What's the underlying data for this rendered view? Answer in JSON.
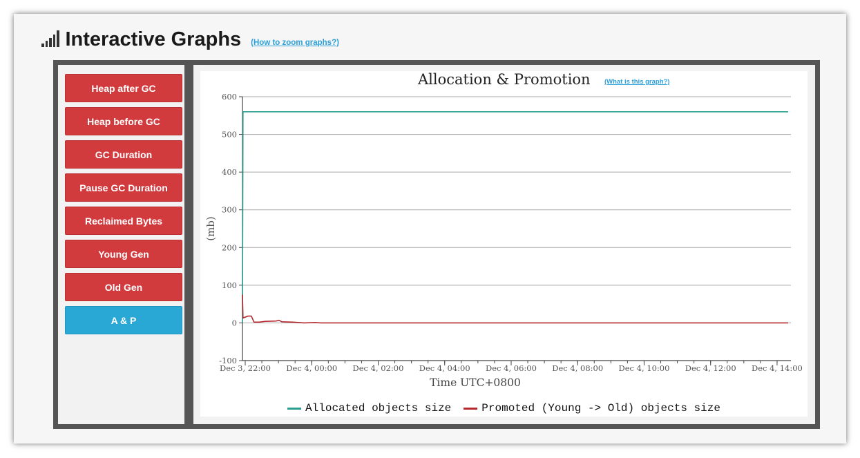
{
  "header": {
    "title": "Interactive Graphs",
    "help_link": "(How to zoom graphs?)"
  },
  "sidebar": {
    "items": [
      {
        "label": "Heap after GC"
      },
      {
        "label": "Heap before GC"
      },
      {
        "label": "GC Duration"
      },
      {
        "label": "Pause GC Duration"
      },
      {
        "label": "Reclaimed Bytes"
      },
      {
        "label": "Young Gen"
      },
      {
        "label": "Old Gen"
      },
      {
        "label": "A & P"
      }
    ],
    "active_index": 7
  },
  "colors": {
    "sidebar_button": "#d23b3e",
    "sidebar_active": "#29a8d6",
    "allocated_series": "#2a9d8f",
    "promoted_series": "#b5282e"
  },
  "chart_data": {
    "type": "line",
    "title": "Allocation & Promotion",
    "help_link": "(What is this graph?)",
    "ylabel": "(mb)",
    "xlabel": "Time UTC+0800",
    "ylim": [
      -100,
      600
    ],
    "y_ticks": [
      -100,
      0,
      100,
      200,
      300,
      400,
      500,
      600
    ],
    "xlim": [
      "Dec 3, 21:55",
      "Dec 4, 14:25"
    ],
    "x_ticks": [
      {
        "label": "Dec 3, 22:00",
        "x": "Dec 3, 22:00"
      },
      {
        "label": "Dec 4, 00:00",
        "x": "Dec 4, 00:00"
      },
      {
        "label": "Dec 4, 02:00",
        "x": "Dec 4, 02:00"
      },
      {
        "label": "Dec 4, 04:00",
        "x": "Dec 4, 04:00"
      },
      {
        "label": "Dec 4, 06:00",
        "x": "Dec 4, 06:00"
      },
      {
        "label": "Dec 4, 08:00",
        "x": "Dec 4, 08:00"
      },
      {
        "label": "Dec 4, 10:00",
        "x": "Dec 4, 10:00"
      },
      {
        "label": "Dec 4, 12:00",
        "x": "Dec 4, 12:00"
      },
      {
        "label": "Dec 4, 14:00",
        "x": "Dec 4, 14:00"
      }
    ],
    "grid": true,
    "legend_position": "bottom",
    "series": [
      {
        "name": "Allocated objects size",
        "color": "#2a9d8f",
        "points": [
          {
            "x": "Dec 3, 21:55",
            "y": 0
          },
          {
            "x": "Dec 3, 21:56",
            "y": 560
          },
          {
            "x": "Dec 4, 14:20",
            "y": 560
          }
        ]
      },
      {
        "name": "Promoted (Young -> Old) objects size",
        "color": "#b5282e",
        "points": [
          {
            "x": "Dec 3, 21:55",
            "y": 75
          },
          {
            "x": "Dec 3, 21:56",
            "y": 13
          },
          {
            "x": "Dec 3, 22:05",
            "y": 18
          },
          {
            "x": "Dec 3, 22:11",
            "y": 18
          },
          {
            "x": "Dec 3, 22:16",
            "y": 2
          },
          {
            "x": "Dec 3, 22:25",
            "y": 2
          },
          {
            "x": "Dec 3, 22:36",
            "y": 4
          },
          {
            "x": "Dec 3, 22:56",
            "y": 5
          },
          {
            "x": "Dec 3, 23:01",
            "y": 7
          },
          {
            "x": "Dec 3, 23:06",
            "y": 3
          },
          {
            "x": "Dec 3, 23:26",
            "y": 2
          },
          {
            "x": "Dec 3, 23:46",
            "y": 0
          },
          {
            "x": "Dec 4, 00:06",
            "y": 1
          },
          {
            "x": "Dec 4, 00:16",
            "y": 0
          },
          {
            "x": "Dec 4, 14:20",
            "y": 0
          }
        ]
      }
    ]
  }
}
